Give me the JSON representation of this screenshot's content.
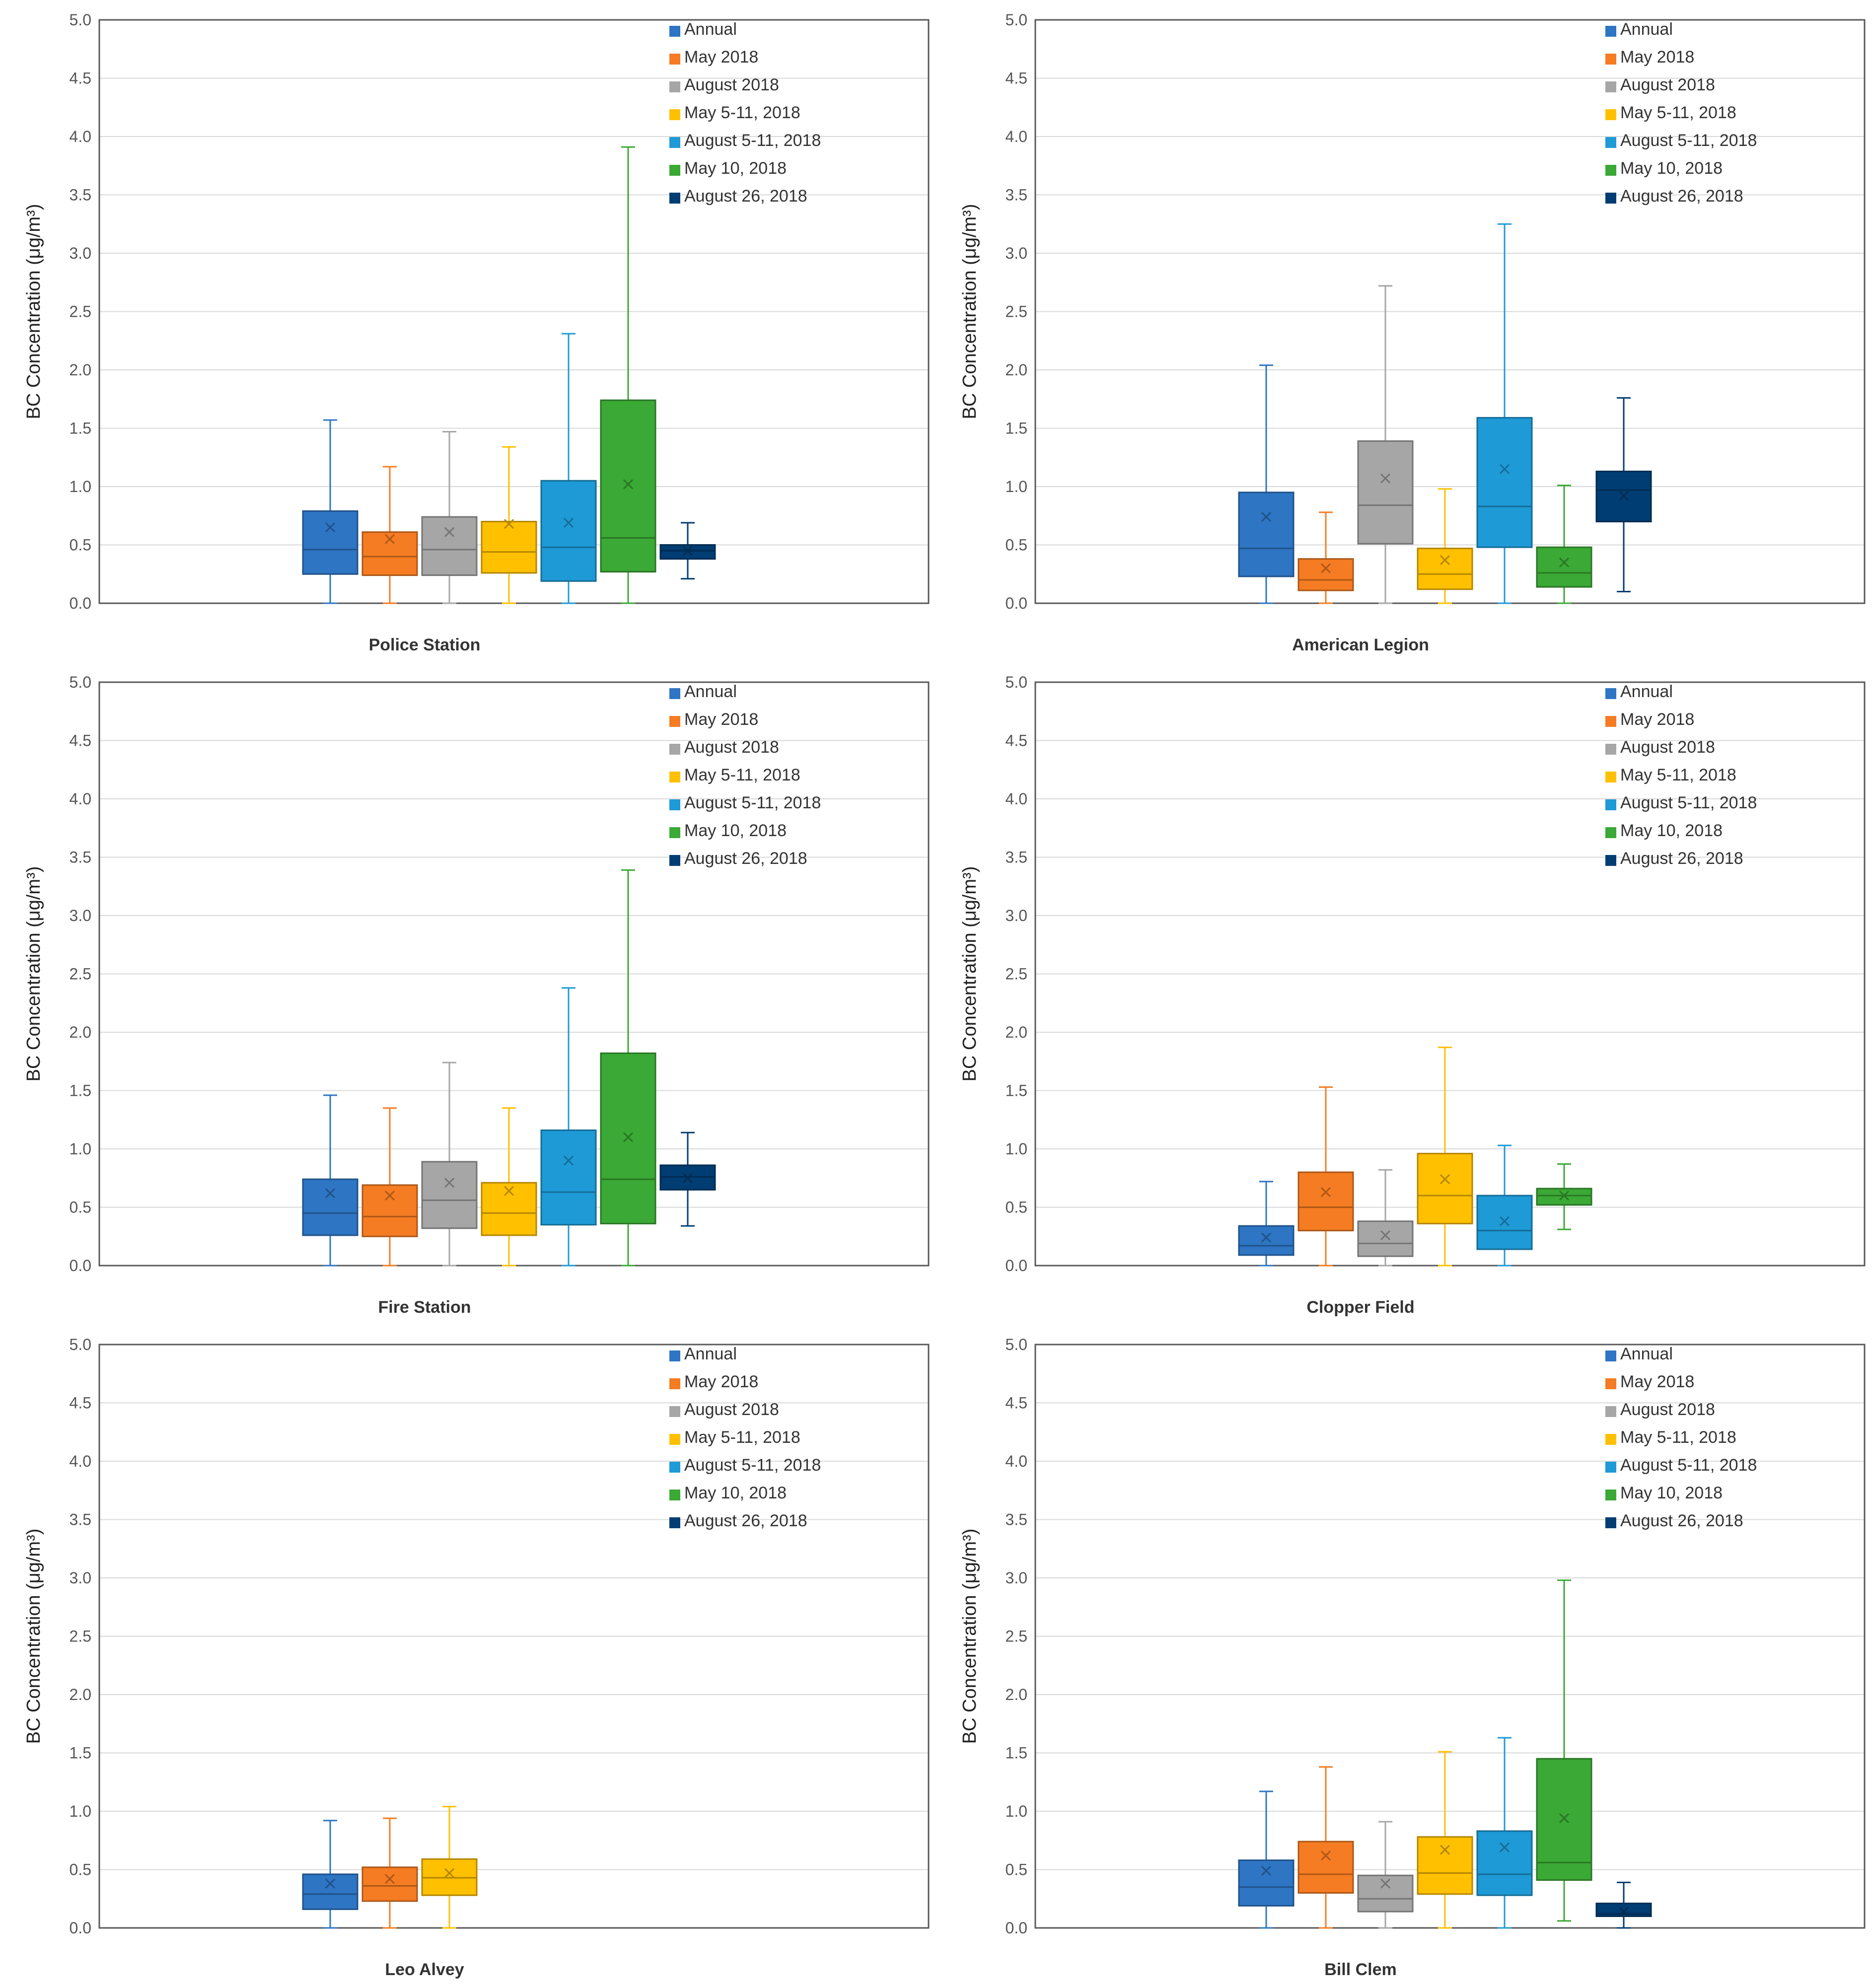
{
  "figure_ylabel": "BC Concentration (μg/m³)",
  "legend_labels": [
    "Annual",
    "May 2018",
    "August 2018",
    "May 5-11, 2018",
    "August 5-11, 2018",
    "May 10, 2018",
    "August 26, 2018"
  ],
  "series_colors": [
    "#2E75C3",
    "#F57C22",
    "#A6A6A6",
    "#FFC000",
    "#1E9AD6",
    "#3AA935",
    "#003D73"
  ],
  "chart_data": [
    {
      "type": "box",
      "title": "Police Station",
      "ylabel": "BC Concentration (μg/m³)",
      "ylim": [
        0,
        5
      ],
      "yticks": [
        "0.0",
        "0.5",
        "1.0",
        "1.5",
        "2.0",
        "2.5",
        "3.0",
        "3.5",
        "4.0",
        "4.5",
        "5.0"
      ],
      "grid": true,
      "legend": "top-right",
      "series": [
        {
          "name": "Annual",
          "min": 0.0,
          "q1": 0.25,
          "median": 0.46,
          "q3": 0.79,
          "max": 1.57,
          "mean": 0.65
        },
        {
          "name": "May 2018",
          "min": 0.0,
          "q1": 0.24,
          "median": 0.4,
          "q3": 0.61,
          "max": 1.17,
          "mean": 0.55
        },
        {
          "name": "August 2018",
          "min": 0.0,
          "q1": 0.24,
          "median": 0.46,
          "q3": 0.74,
          "max": 1.47,
          "mean": 0.61
        },
        {
          "name": "May 5-11, 2018",
          "min": 0.0,
          "q1": 0.26,
          "median": 0.44,
          "q3": 0.7,
          "max": 1.34,
          "mean": 0.68
        },
        {
          "name": "August 5-11, 2018",
          "min": 0.0,
          "q1": 0.19,
          "median": 0.48,
          "q3": 1.05,
          "max": 2.31,
          "mean": 0.69
        },
        {
          "name": "May 10, 2018",
          "min": 0.0,
          "q1": 0.27,
          "median": 0.56,
          "q3": 1.74,
          "max": 3.91,
          "mean": 1.02
        },
        {
          "name": "August 26, 2018",
          "min": 0.21,
          "q1": 0.38,
          "median": 0.45,
          "q3": 0.5,
          "max": 0.69,
          "mean": 0.45
        }
      ]
    },
    {
      "type": "box",
      "title": "American Legion",
      "ylabel": "BC Concentration (μg/m³)",
      "ylim": [
        0,
        5
      ],
      "yticks": [
        "0.0",
        "0.5",
        "1.0",
        "1.5",
        "2.0",
        "2.5",
        "3.0",
        "3.5",
        "4.0",
        "4.5",
        "5.0"
      ],
      "grid": true,
      "legend": "top-right",
      "series": [
        {
          "name": "Annual",
          "min": 0.0,
          "q1": 0.23,
          "median": 0.47,
          "q3": 0.95,
          "max": 2.04,
          "mean": 0.74
        },
        {
          "name": "May 2018",
          "min": 0.0,
          "q1": 0.11,
          "median": 0.2,
          "q3": 0.38,
          "max": 0.78,
          "mean": 0.3
        },
        {
          "name": "August 2018",
          "min": 0.0,
          "q1": 0.51,
          "median": 0.84,
          "q3": 1.39,
          "max": 2.72,
          "mean": 1.07
        },
        {
          "name": "May 5-11, 2018",
          "min": 0.0,
          "q1": 0.12,
          "median": 0.25,
          "q3": 0.47,
          "max": 0.98,
          "mean": 0.37
        },
        {
          "name": "August 5-11, 2018",
          "min": 0.0,
          "q1": 0.48,
          "median": 0.83,
          "q3": 1.59,
          "max": 3.25,
          "mean": 1.15
        },
        {
          "name": "May 10, 2018",
          "min": 0.0,
          "q1": 0.14,
          "median": 0.26,
          "q3": 0.48,
          "max": 1.01,
          "mean": 0.35
        },
        {
          "name": "August 26, 2018",
          "min": 0.1,
          "q1": 0.7,
          "median": 0.97,
          "q3": 1.13,
          "max": 1.76,
          "mean": 0.92
        }
      ]
    },
    {
      "type": "box",
      "title": "Fire Station",
      "ylabel": "BC Concentration (μg/m³)",
      "ylim": [
        0,
        5
      ],
      "yticks": [
        "0.0",
        "0.5",
        "1.0",
        "1.5",
        "2.0",
        "2.5",
        "3.0",
        "3.5",
        "4.0",
        "4.5",
        "5.0"
      ],
      "grid": true,
      "legend": "top-right",
      "series": [
        {
          "name": "Annual",
          "min": 0.0,
          "q1": 0.26,
          "median": 0.45,
          "q3": 0.74,
          "max": 1.46,
          "mean": 0.62
        },
        {
          "name": "May 2018",
          "min": 0.0,
          "q1": 0.25,
          "median": 0.42,
          "q3": 0.69,
          "max": 1.35,
          "mean": 0.6
        },
        {
          "name": "August 2018",
          "min": 0.0,
          "q1": 0.32,
          "median": 0.56,
          "q3": 0.89,
          "max": 1.74,
          "mean": 0.71
        },
        {
          "name": "May 5-11, 2018",
          "min": 0.0,
          "q1": 0.26,
          "median": 0.45,
          "q3": 0.71,
          "max": 1.35,
          "mean": 0.64
        },
        {
          "name": "August 5-11, 2018",
          "min": 0.0,
          "q1": 0.35,
          "median": 0.63,
          "q3": 1.16,
          "max": 2.38,
          "mean": 0.9
        },
        {
          "name": "May 10, 2018",
          "min": 0.0,
          "q1": 0.36,
          "median": 0.74,
          "q3": 1.82,
          "max": 3.39,
          "mean": 1.1
        },
        {
          "name": "August 26, 2018",
          "min": 0.34,
          "q1": 0.65,
          "median": 0.76,
          "q3": 0.86,
          "max": 1.14,
          "mean": 0.75
        }
      ]
    },
    {
      "type": "box",
      "title": "Clopper Field",
      "ylabel": "BC Concentration (μg/m³)",
      "ylim": [
        0,
        5
      ],
      "yticks": [
        "0.0",
        "0.5",
        "1.0",
        "1.5",
        "2.0",
        "2.5",
        "3.0",
        "3.5",
        "4.0",
        "4.5",
        "5.0"
      ],
      "grid": true,
      "legend": "top-right",
      "series": [
        {
          "name": "Annual",
          "min": 0.0,
          "q1": 0.09,
          "median": 0.17,
          "q3": 0.34,
          "max": 0.72,
          "mean": 0.24
        },
        {
          "name": "May 2018",
          "min": 0.0,
          "q1": 0.3,
          "median": 0.5,
          "q3": 0.8,
          "max": 1.53,
          "mean": 0.63
        },
        {
          "name": "August 2018",
          "min": 0.0,
          "q1": 0.08,
          "median": 0.19,
          "q3": 0.38,
          "max": 0.82,
          "mean": 0.26
        },
        {
          "name": "May 5-11, 2018",
          "min": 0.0,
          "q1": 0.36,
          "median": 0.6,
          "q3": 0.96,
          "max": 1.87,
          "mean": 0.74
        },
        {
          "name": "August 5-11, 2018",
          "min": 0.0,
          "q1": 0.14,
          "median": 0.3,
          "q3": 0.6,
          "max": 1.03,
          "mean": 0.38
        },
        {
          "name": "May 10, 2018",
          "min": 0.31,
          "q1": 0.52,
          "median": 0.6,
          "q3": 0.66,
          "max": 0.87,
          "mean": 0.6
        }
      ]
    },
    {
      "type": "box",
      "title": "Leo Alvey",
      "ylabel": "BC Concentration (μg/m³)",
      "ylim": [
        0,
        5
      ],
      "yticks": [
        "0.0",
        "0.5",
        "1.0",
        "1.5",
        "2.0",
        "2.5",
        "3.0",
        "3.5",
        "4.0",
        "4.5",
        "5.0"
      ],
      "grid": true,
      "legend": "top-right",
      "series": [
        {
          "name": "Annual",
          "min": 0.0,
          "q1": 0.16,
          "median": 0.29,
          "q3": 0.46,
          "max": 0.92,
          "mean": 0.38
        },
        {
          "name": "May 2018",
          "min": 0.0,
          "q1": 0.23,
          "median": 0.36,
          "q3": 0.52,
          "max": 0.94,
          "mean": 0.42
        },
        {
          "name": "May 5-11, 2018",
          "min": 0.0,
          "q1": 0.28,
          "median": 0.43,
          "q3": 0.59,
          "max": 1.04,
          "mean": 0.47
        }
      ]
    },
    {
      "type": "box",
      "title": "Bill Clem",
      "ylabel": "BC Concentration (μg/m³)",
      "ylim": [
        0,
        5
      ],
      "yticks": [
        "0.0",
        "0.5",
        "1.0",
        "1.5",
        "2.0",
        "2.5",
        "3.0",
        "3.5",
        "4.0",
        "4.5",
        "5.0"
      ],
      "grid": true,
      "legend": "top-right",
      "series": [
        {
          "name": "Annual",
          "min": 0.0,
          "q1": 0.19,
          "median": 0.35,
          "q3": 0.58,
          "max": 1.17,
          "mean": 0.49
        },
        {
          "name": "May 2018",
          "min": 0.0,
          "q1": 0.3,
          "median": 0.46,
          "q3": 0.74,
          "max": 1.38,
          "mean": 0.62
        },
        {
          "name": "August 2018",
          "min": 0.0,
          "q1": 0.14,
          "median": 0.25,
          "q3": 0.45,
          "max": 0.91,
          "mean": 0.38
        },
        {
          "name": "May 5-11, 2018",
          "min": 0.0,
          "q1": 0.29,
          "median": 0.47,
          "q3": 0.78,
          "max": 1.51,
          "mean": 0.67
        },
        {
          "name": "August 5-11, 2018",
          "min": 0.0,
          "q1": 0.28,
          "median": 0.46,
          "q3": 0.83,
          "max": 1.63,
          "mean": 0.69
        },
        {
          "name": "May 10, 2018",
          "min": 0.06,
          "q1": 0.41,
          "median": 0.56,
          "q3": 1.45,
          "max": 2.98,
          "mean": 0.94
        },
        {
          "name": "August 26, 2018",
          "min": 0.0,
          "q1": 0.1,
          "median": 0.12,
          "q3": 0.21,
          "max": 0.39,
          "mean": 0.14
        }
      ]
    }
  ]
}
